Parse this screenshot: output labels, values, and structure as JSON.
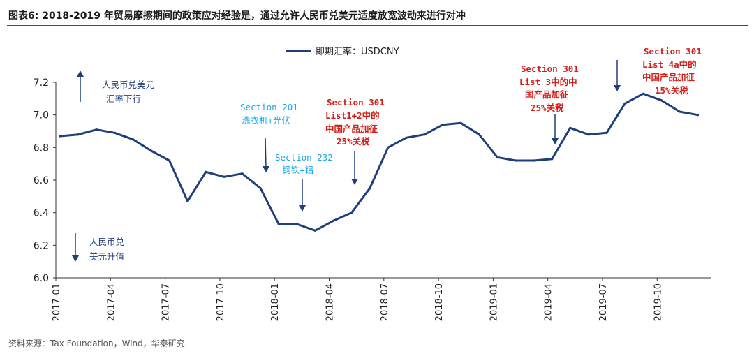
{
  "header": {
    "title": "图表6:  2018-2019 年贸易摩擦期间的政策应对经验是，通过允许人民币兑美元适度放宽波动来进行对冲"
  },
  "source": "资料来源：Tax Foundation，Wind，华泰研究",
  "chart_data": {
    "type": "line",
    "legend": "即期汇率：USDCNY",
    "legend_position": "top-center",
    "grid": false,
    "ylim": [
      6.0,
      7.2
    ],
    "y_ticks": [
      "6.0",
      "6.2",
      "6.4",
      "6.6",
      "6.8",
      "7.0",
      "7.2"
    ],
    "x_ticks": [
      "2017-01",
      "2017-04",
      "2017-07",
      "2017-10",
      "2018-01",
      "2018-04",
      "2018-07",
      "2018-10",
      "2019-01",
      "2019-04",
      "2019-07",
      "2019-10"
    ],
    "x": [
      "2017-01",
      "2017-02",
      "2017-03",
      "2017-04",
      "2017-05",
      "2017-06",
      "2017-07",
      "2017-08",
      "2017-09",
      "2017-10",
      "2017-11",
      "2017-12",
      "2018-01",
      "2018-02",
      "2018-03",
      "2018-04",
      "2018-05",
      "2018-06",
      "2018-07",
      "2018-08",
      "2018-09",
      "2018-10",
      "2018-11",
      "2018-12",
      "2019-01",
      "2019-02",
      "2019-03",
      "2019-04",
      "2019-05",
      "2019-06",
      "2019-07",
      "2019-08",
      "2019-09",
      "2019-10",
      "2019-11",
      "2019-12"
    ],
    "series": [
      {
        "name": "即期汇率：USDCNY",
        "color": "#1f3f7a",
        "values": [
          6.87,
          6.88,
          6.91,
          6.89,
          6.85,
          6.78,
          6.72,
          6.47,
          6.65,
          6.62,
          6.64,
          6.55,
          6.33,
          6.33,
          6.29,
          6.35,
          6.4,
          6.55,
          6.8,
          6.86,
          6.88,
          6.94,
          6.95,
          6.88,
          6.74,
          6.72,
          6.72,
          6.73,
          6.92,
          6.88,
          6.89,
          7.07,
          7.13,
          7.09,
          7.02,
          7.0
        ]
      }
    ],
    "annotations": [
      {
        "id": "cny-down",
        "color": "#1f3f7a",
        "lines": [
          "人民币兑美元",
          "汇率下行"
        ],
        "arrow": "up"
      },
      {
        "id": "cny-up",
        "color": "#1f3f7a",
        "lines": [
          "人民币兑",
          "美元升值"
        ],
        "arrow": "down"
      },
      {
        "id": "s201",
        "color": "#1aa9e6",
        "lines": [
          "Section 201",
          "洗衣机+光伏"
        ],
        "arrow": "down"
      },
      {
        "id": "s232",
        "color": "#1aa9e6",
        "lines": [
          "Section 232",
          "钢铁+铝"
        ],
        "arrow": "down"
      },
      {
        "id": "s301a",
        "color": "#d0201a",
        "lines": [
          "Section 301",
          "List1+2中的",
          "中国产品加征",
          "25%关税"
        ],
        "arrow": "down"
      },
      {
        "id": "s301b",
        "color": "#d0201a",
        "lines": [
          "Section 301",
          "List 3中的中",
          "国产品加征",
          "25%关税"
        ],
        "arrow": "down"
      },
      {
        "id": "s301c",
        "color": "#d0201a",
        "lines": [
          "Section 301",
          "List 4a中的",
          "中国产品加征",
          "15%关税"
        ],
        "arrow": "down"
      }
    ]
  }
}
